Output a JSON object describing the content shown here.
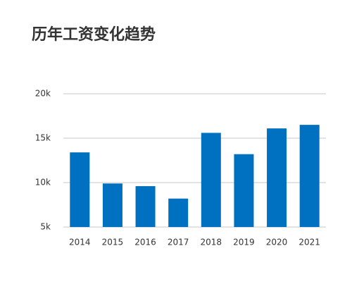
{
  "chart_data": {
    "type": "bar",
    "title": "历年工资变化趋势",
    "categories": [
      "2014",
      "2015",
      "2016",
      "2017",
      "2018",
      "2019",
      "2020",
      "2021"
    ],
    "values": [
      13400,
      9900,
      9600,
      8200,
      15600,
      13200,
      16100,
      16500
    ],
    "color": "#0070c0",
    "ylim": [
      5000,
      20000
    ],
    "yticks": [
      {
        "value": 5000,
        "label": "5k"
      },
      {
        "value": 10000,
        "label": "10k"
      },
      {
        "value": 15000,
        "label": "15k"
      },
      {
        "value": 20000,
        "label": "20k"
      }
    ],
    "grid": true
  }
}
